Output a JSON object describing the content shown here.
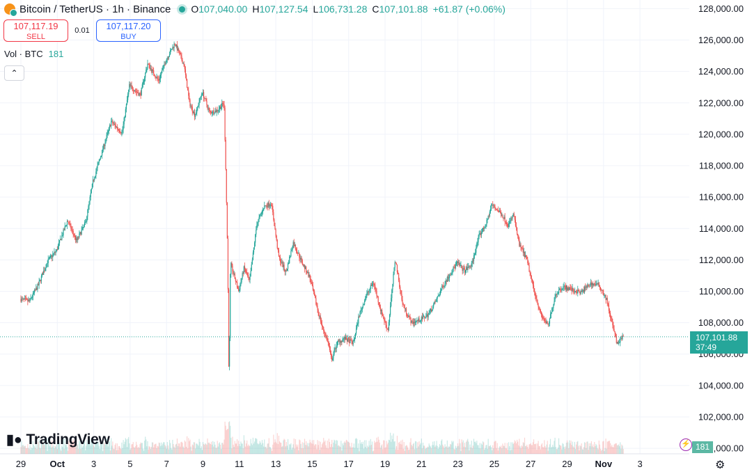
{
  "legend": {
    "symbol": "Bitcoin / TetherUS · 1h · Binance",
    "o_key": "O",
    "o_val": "107,040.00",
    "h_key": "H",
    "h_val": "107,127.54",
    "l_key": "L",
    "l_val": "106,731.28",
    "c_key": "C",
    "c_val": "107,101.88",
    "change": "+61.87 (+0.06%)"
  },
  "trade": {
    "sell_price": "107,117.19",
    "sell_label": "SELL",
    "spread": "0.01",
    "buy_price": "107,117.20",
    "buy_label": "BUY"
  },
  "volume": {
    "label": "Vol · BTC",
    "value": "181"
  },
  "last_price": {
    "price": "107,101.88",
    "countdown": "37:49",
    "volume_tag": "181"
  },
  "branding": {
    "logo_text": "TradingView"
  },
  "icons": {
    "collapse": "chevron-up-icon",
    "settings": "gear-icon",
    "bolt": "lightning-icon",
    "coin": "bitcoin-icon"
  },
  "colors": {
    "up": "#26a69a",
    "down": "#ef5350",
    "grid": "#f0f3fa",
    "text": "#131722",
    "sell": "#f23645",
    "buy": "#2962ff"
  },
  "chart_data": {
    "type": "candlestick",
    "symbol": "BTCUSDT",
    "interval": "1h",
    "exchange": "Binance",
    "y_ticks": [
      128000,
      126000,
      124000,
      122000,
      120000,
      118000,
      116000,
      114000,
      112000,
      110000,
      108000,
      106000,
      104000,
      102000,
      100000
    ],
    "y_tick_labels": [
      "128,000.00",
      "126,000.00",
      "124,000.00",
      "122,000.00",
      "120,000.00",
      "118,000.00",
      "116,000.00",
      "114,000.00",
      "112,000.00",
      "110,000.00",
      "108,000.00",
      "106,000.00",
      "104,000.00",
      "102,000.00",
      "100,000.00"
    ],
    "ylim": [
      99650,
      128550
    ],
    "x_ticks": [
      "29",
      "Oct",
      "3",
      "5",
      "7",
      "9",
      "11",
      "13",
      "15",
      "17",
      "19",
      "21",
      "23",
      "25",
      "27",
      "29",
      "Nov",
      "3"
    ],
    "x_tick_bold": [
      false,
      true,
      false,
      false,
      false,
      false,
      false,
      false,
      false,
      false,
      false,
      false,
      false,
      false,
      false,
      false,
      true,
      false
    ],
    "grid": true,
    "last_price": 107101.88,
    "price_path": [
      [
        0,
        109500
      ],
      [
        0.5,
        109350
      ],
      [
        1,
        110400
      ],
      [
        1.5,
        111900
      ],
      [
        2,
        112600
      ],
      [
        2.6,
        114500
      ],
      [
        3.1,
        113200
      ],
      [
        3.6,
        114400
      ],
      [
        4,
        117000
      ],
      [
        4.5,
        118900
      ],
      [
        5,
        120800
      ],
      [
        5.6,
        120100
      ],
      [
        6,
        123100
      ],
      [
        6.6,
        122500
      ],
      [
        7,
        124500
      ],
      [
        7.6,
        123400
      ],
      [
        8,
        124700
      ],
      [
        8.5,
        125800
      ],
      [
        9,
        124400
      ],
      [
        9.3,
        122000
      ],
      [
        9.6,
        121200
      ],
      [
        10,
        122700
      ],
      [
        10.4,
        121400
      ],
      [
        10.8,
        121500
      ],
      [
        11.2,
        122000
      ],
      [
        11.3,
        117500
      ],
      [
        11.4,
        112000
      ],
      [
        11.47,
        104000
      ],
      [
        11.55,
        111800
      ],
      [
        12,
        110000
      ],
      [
        12.3,
        111500
      ],
      [
        12.6,
        110600
      ],
      [
        13,
        114300
      ],
      [
        13.4,
        115400
      ],
      [
        13.8,
        115600
      ],
      [
        14.2,
        112200
      ],
      [
        14.6,
        111200
      ],
      [
        15,
        113100
      ],
      [
        15.5,
        111800
      ],
      [
        15.9,
        110900
      ],
      [
        16.3,
        109000
      ],
      [
        16.6,
        107700
      ],
      [
        16.9,
        106800
      ],
      [
        17.1,
        105600
      ],
      [
        17.4,
        106700
      ],
      [
        17.8,
        107000
      ],
      [
        18.3,
        106700
      ],
      [
        18.6,
        108400
      ],
      [
        19,
        109700
      ],
      [
        19.4,
        110600
      ],
      [
        19.8,
        108800
      ],
      [
        20.2,
        107500
      ],
      [
        20.6,
        112100
      ],
      [
        21,
        109200
      ],
      [
        21.5,
        108000
      ],
      [
        22,
        108200
      ],
      [
        22.4,
        108500
      ],
      [
        22.8,
        109300
      ],
      [
        23.2,
        110300
      ],
      [
        23.6,
        111100
      ],
      [
        24,
        111800
      ],
      [
        24.4,
        111300
      ],
      [
        24.8,
        111700
      ],
      [
        25.2,
        113500
      ],
      [
        25.6,
        114300
      ],
      [
        25.9,
        115500
      ],
      [
        26.2,
        115200
      ],
      [
        26.5,
        114800
      ],
      [
        26.8,
        114200
      ],
      [
        27.1,
        114900
      ],
      [
        27.4,
        113000
      ],
      [
        27.8,
        112100
      ],
      [
        28.2,
        110200
      ],
      [
        28.6,
        108500
      ],
      [
        29,
        107800
      ],
      [
        29.4,
        109800
      ],
      [
        29.8,
        110300
      ],
      [
        30.3,
        110100
      ],
      [
        30.8,
        109900
      ],
      [
        31.3,
        110500
      ],
      [
        31.8,
        110400
      ],
      [
        32.2,
        109500
      ],
      [
        32.5,
        108000
      ],
      [
        32.8,
        106600
      ],
      [
        33.1,
        107100
      ]
    ],
    "volume": {
      "label": "Vol · BTC",
      "last": 181
    }
  }
}
